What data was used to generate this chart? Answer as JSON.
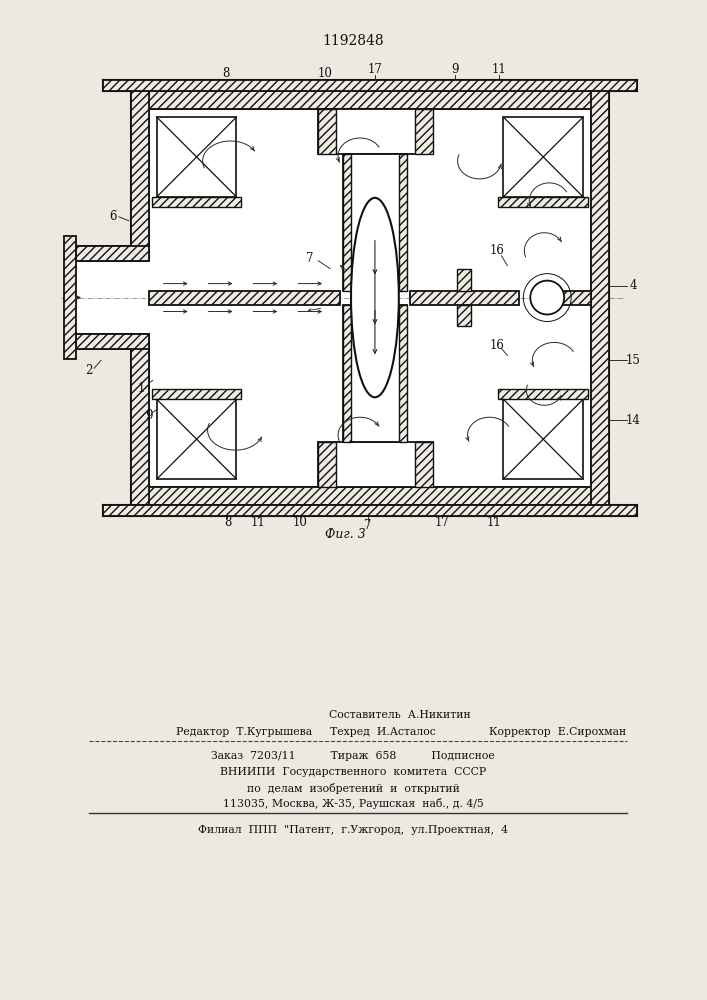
{
  "title": "1192848",
  "fig_label": "Фиг. 3",
  "bg_color": "#ede9e0",
  "line_color": "#111111",
  "footer": {
    "line1": "Составитель  А.Никитин",
    "line2_left": "Редактор  Т.Кугрышева",
    "line2_mid": "Техред  И.Асталос",
    "line2_right": "Корректор  Е.Сирохман",
    "line3": "Заказ  7203/11          Тираж  658          Подписное",
    "line4": "ВНИИПИ  Государственного  комитета  СССР",
    "line5": "по  делам  изобретений  и  открытий",
    "line6": "113035, Москва, Ж-35, Раушская  наб., д. 4/5",
    "line7": "Филиал  ППП  \"Патент,  г.Ужгород,  ул.Проектная,  4"
  }
}
